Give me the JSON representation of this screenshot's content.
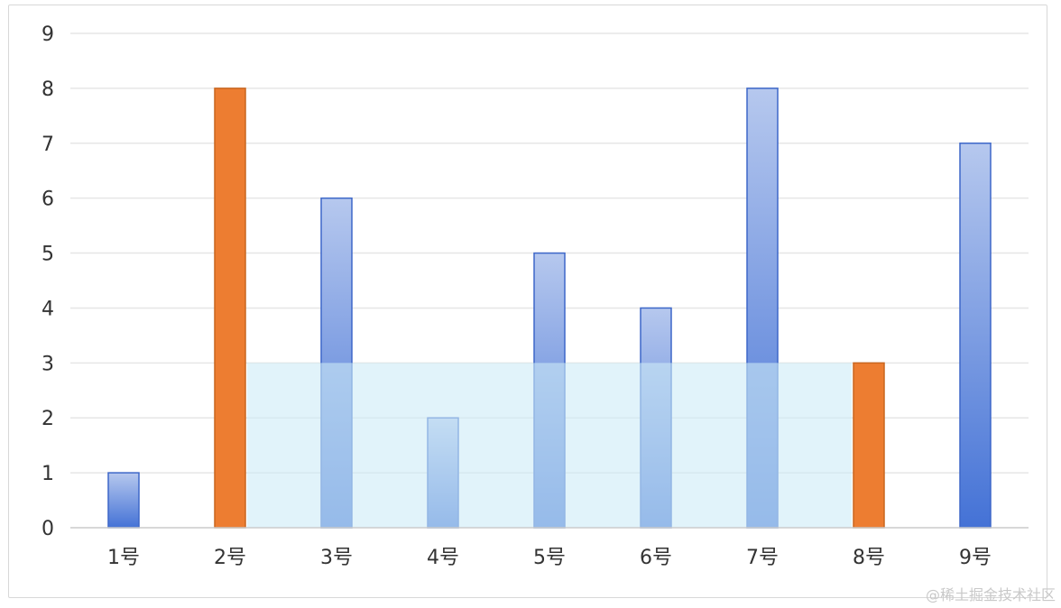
{
  "chart_data": {
    "type": "bar",
    "categories": [
      "1号",
      "2号",
      "3号",
      "4号",
      "5号",
      "6号",
      "7号",
      "8号",
      "9号"
    ],
    "values": [
      1,
      8,
      6,
      2,
      5,
      4,
      8,
      3,
      7
    ],
    "highlighted": [
      "2号",
      "8号"
    ],
    "ylim": [
      0,
      9
    ],
    "yticks": [
      0,
      1,
      2,
      3,
      4,
      5,
      6,
      7,
      8,
      9
    ],
    "mark_area": {
      "from": "2号",
      "to": "8号",
      "y": [
        0,
        3
      ]
    },
    "grid": true,
    "title": "",
    "xlabel": "",
    "ylabel": "",
    "colors": {
      "bar_top": "#b6c8ee",
      "bar_bottom": "#4472d6",
      "bar_stroke": "#3d67c9",
      "highlight": "#ed7d31",
      "mark_area": "#cdebf7",
      "grid": "#e6e6e6",
      "axis": "#cccccc"
    }
  },
  "watermark": "@稀土掘金技术社区"
}
